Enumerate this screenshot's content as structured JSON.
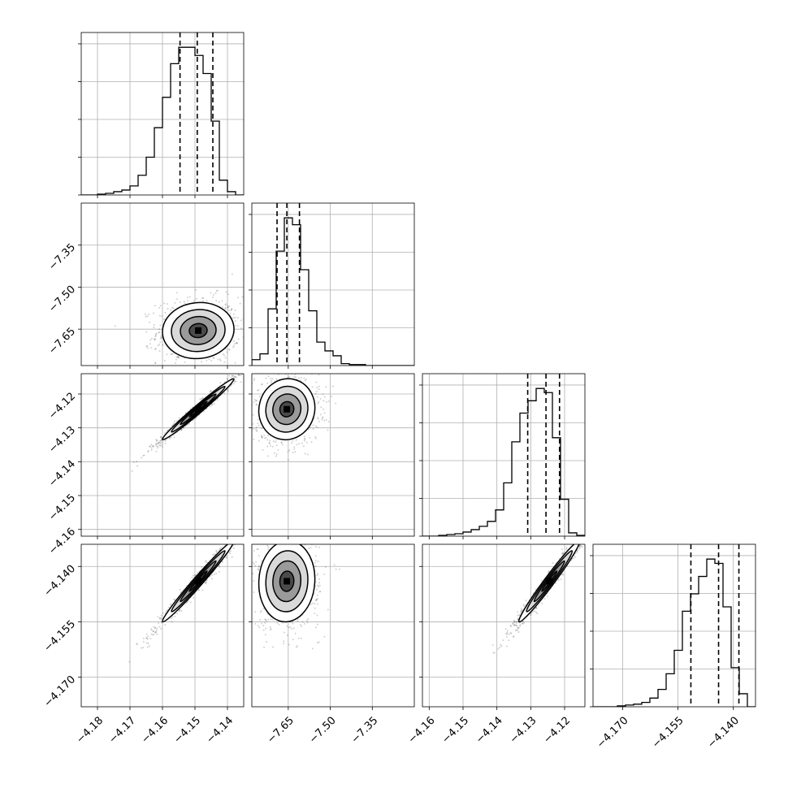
{
  "chart_data": {
    "type": "corner",
    "n_params": 4,
    "colors": {
      "line": "#000000",
      "grid": "#b0b0b0",
      "scatter": "#000000",
      "fill_dark": "#000000",
      "fill_light": "#ffffff"
    },
    "grid": true,
    "params": [
      {
        "range": [
          -4.185,
          -4.135
        ],
        "ticks": [
          -4.18,
          -4.17,
          -4.16,
          -4.15,
          -4.14
        ],
        "tick_labels": [
          "−4.18",
          "−4.17",
          "−4.16",
          "−4.15",
          "−4.14"
        ],
        "quantiles": [
          -4.1546,
          -4.1493,
          -4.1445
        ],
        "median": -4.149,
        "sigma": 0.0055
      },
      {
        "range": [
          -7.78,
          -7.2
        ],
        "ticks": [
          -7.65,
          -7.5,
          -7.35
        ],
        "tick_labels": [
          "−7.65",
          "−7.50",
          "−7.35"
        ],
        "quantiles": [
          -7.69,
          -7.655,
          -7.61
        ],
        "median": -7.655,
        "sigma": 0.05
      },
      {
        "range": [
          -4.162,
          -4.114
        ],
        "ticks": [
          -4.16,
          -4.15,
          -4.14,
          -4.13,
          -4.12
        ],
        "tick_labels": [
          "−4.16",
          "−4.15",
          "−4.14",
          "−4.13",
          "−4.12"
        ],
        "quantiles": [
          -4.1309,
          -4.1255,
          -4.1215
        ],
        "median": -4.1245,
        "sigma": 0.0045
      },
      {
        "range": [
          -4.178,
          -4.134
        ],
        "ticks": [
          -4.17,
          -4.155,
          -4.14
        ],
        "tick_labels": [
          "−4.170",
          "−4.155",
          "−4.140"
        ],
        "quantiles": [
          -4.1515,
          -4.144,
          -4.1385
        ],
        "median": -4.144,
        "sigma": 0.0055
      }
    ],
    "histograms": [
      {
        "param": 0,
        "bin_edges": [
          -4.185,
          -4.1825,
          -4.18,
          -4.1775,
          -4.175,
          -4.1725,
          -4.17,
          -4.1675,
          -4.165,
          -4.1625,
          -4.16,
          -4.1575,
          -4.155,
          -4.1525,
          -4.15,
          -4.1475,
          -4.145,
          -4.1425,
          -4.14,
          -4.1375,
          -4.135
        ],
        "counts": [
          0,
          0,
          1,
          2,
          4,
          6,
          11,
          24,
          46,
          82,
          119,
          160,
          180,
          180,
          170,
          148,
          90,
          18,
          4,
          0
        ]
      },
      {
        "param": 1,
        "bin_edges": [
          -7.78,
          -7.751,
          -7.722,
          -7.693,
          -7.664,
          -7.635,
          -7.606,
          -7.577,
          -7.548,
          -7.519,
          -7.49,
          -7.461,
          -7.432,
          -7.403,
          -7.374,
          -7.345,
          -7.316,
          -7.287,
          -7.258,
          -7.229,
          -7.2
        ],
        "counts": [
          6,
          12,
          58,
          117,
          151,
          144,
          98,
          56,
          24,
          15,
          10,
          2,
          1,
          1,
          0,
          0,
          0,
          0,
          0,
          0
        ]
      },
      {
        "param": 2,
        "bin_edges": [
          -4.162,
          -4.1596,
          -4.1572,
          -4.1548,
          -4.1524,
          -4.15,
          -4.1476,
          -4.1452,
          -4.1428,
          -4.1404,
          -4.138,
          -4.1356,
          -4.1332,
          -4.1308,
          -4.1284,
          -4.126,
          -4.1236,
          -4.1212,
          -4.1188,
          -4.1164,
          -4.114
        ],
        "counts": [
          0,
          0,
          1,
          2,
          3,
          5,
          8,
          12,
          18,
          32,
          65,
          115,
          150,
          165,
          180,
          175,
          120,
          45,
          4,
          1
        ]
      },
      {
        "param": 3,
        "bin_edges": [
          -4.178,
          -4.1758,
          -4.1736,
          -4.1714,
          -4.1692,
          -4.167,
          -4.1648,
          -4.1626,
          -4.1604,
          -4.1582,
          -4.156,
          -4.1538,
          -4.1516,
          -4.1494,
          -4.1472,
          -4.145,
          -4.1428,
          -4.1406,
          -4.1384,
          -4.1362,
          -4.134
        ],
        "counts": [
          0,
          0,
          0,
          1,
          2,
          3,
          5,
          10,
          20,
          38,
          65,
          110,
          130,
          150,
          170,
          165,
          115,
          45,
          15,
          0
        ]
      }
    ],
    "pairs": [
      {
        "x": 0,
        "y": 1,
        "correlation": 0.05
      },
      {
        "x": 0,
        "y": 2,
        "correlation": 0.985
      },
      {
        "x": 1,
        "y": 2,
        "correlation": 0.05
      },
      {
        "x": 0,
        "y": 3,
        "correlation": 0.985
      },
      {
        "x": 1,
        "y": 3,
        "correlation": 0.05
      },
      {
        "x": 2,
        "y": 3,
        "correlation": 0.98
      }
    ],
    "contour_levels_sigma": [
      0.5,
      1.0,
      1.5,
      2.0
    ]
  }
}
